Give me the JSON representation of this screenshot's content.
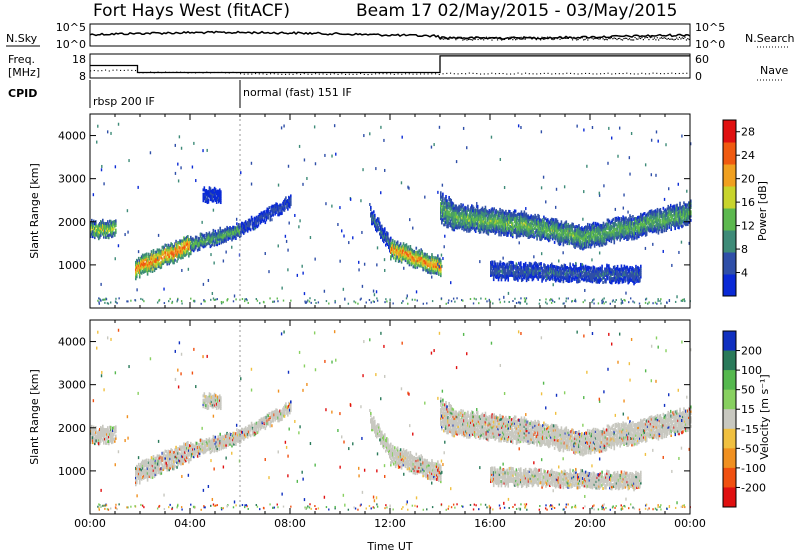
{
  "header": {
    "radar": "Fort Hays West (fitACF)",
    "beam_range": "Beam 17 02/May/2015 - 03/May/2015"
  },
  "status_panels": {
    "nsky_label": "N.Sky",
    "nsky_ticks": [
      "10^5",
      "10^0"
    ],
    "nsearch_label": "N.Search",
    "nsearch_ticks": [
      "10^5",
      "10^0"
    ],
    "freq_label_line1": "Freq.",
    "freq_label_line2": "[MHz]",
    "freq_ticks": [
      18,
      8
    ],
    "nave_label": "Nave",
    "nave_ticks": [
      60,
      0
    ],
    "cpid_label": "CPID",
    "cpid_modes": [
      {
        "name": "rbsp 200 IF",
        "start_h": 0,
        "end_h": 6
      },
      {
        "name": "normal (fast) 151 IF",
        "start_h": 6,
        "end_h": 24
      }
    ],
    "freq_segments": [
      {
        "start_h": 0,
        "end_h": 1.9,
        "mhz": 13.2
      },
      {
        "start_h": 1.9,
        "end_h": 14.0,
        "mhz": 10.3
      },
      {
        "start_h": 14.0,
        "end_h": 24,
        "mhz": 17.2
      }
    ]
  },
  "chart_data": [
    {
      "type": "heatmap",
      "name": "power",
      "ylabel": "Slant Range [km]",
      "colorbar_label": "Power [dB]",
      "colorbar_ticks": [
        4,
        8,
        12,
        16,
        20,
        24,
        28
      ],
      "colorbar_range": [
        0,
        30
      ],
      "colors": [
        "#0a2ad6",
        "#2f4fa8",
        "#3e8b78",
        "#5cb84e",
        "#c8d42c",
        "#f0a020",
        "#f05a10",
        "#e01010"
      ],
      "ylim": [
        0,
        4500
      ],
      "yticks": [
        1000,
        2000,
        3000,
        4000
      ],
      "xlim": [
        0,
        24
      ],
      "echo_bands": [
        {
          "start_h": 0.0,
          "end_h": 1.0,
          "range_start": 1850,
          "range_end": 1880,
          "width": 320,
          "peak_db": 17
        },
        {
          "start_h": 1.8,
          "end_h": 4.0,
          "range_start": 950,
          "range_end": 1500,
          "width": 380,
          "peak_db": 25
        },
        {
          "start_h": 4.0,
          "end_h": 6.0,
          "range_start": 1500,
          "range_end": 1850,
          "width": 250,
          "peak_db": 14
        },
        {
          "start_h": 6.0,
          "end_h": 8.0,
          "range_start": 1850,
          "range_end": 2500,
          "width": 200,
          "peak_db": 6
        },
        {
          "start_h": 11.2,
          "end_h": 12.0,
          "range_start": 2200,
          "range_end": 1500,
          "width": 250,
          "peak_db": 8
        },
        {
          "start_h": 12.0,
          "end_h": 14.0,
          "range_start": 1400,
          "range_end": 1000,
          "width": 350,
          "peak_db": 24
        },
        {
          "start_h": 14.0,
          "end_h": 14.5,
          "range_start": 2350,
          "range_end": 2200,
          "width": 600,
          "peak_db": 13
        },
        {
          "start_h": 14.5,
          "end_h": 17.5,
          "range_start": 2150,
          "range_end": 1950,
          "width": 500,
          "peak_db": 14
        },
        {
          "start_h": 17.5,
          "end_h": 19.8,
          "range_start": 1950,
          "range_end": 1650,
          "width": 450,
          "peak_db": 14
        },
        {
          "start_h": 19.8,
          "end_h": 22.0,
          "range_start": 1700,
          "range_end": 1950,
          "width": 450,
          "peak_db": 13
        },
        {
          "start_h": 22.0,
          "end_h": 24.0,
          "range_start": 1950,
          "range_end": 2250,
          "width": 450,
          "peak_db": 13
        },
        {
          "start_h": 16.0,
          "end_h": 22.0,
          "range_start": 900,
          "range_end": 800,
          "width": 300,
          "peak_db": 7
        },
        {
          "start_h": 4.5,
          "end_h": 5.2,
          "range_start": 2650,
          "range_end": 2650,
          "width": 250,
          "peak_db": 4
        }
      ]
    },
    {
      "type": "heatmap",
      "name": "velocity",
      "ylabel": "Slant Range [km]",
      "colorbar_label": "Velocity [m s⁻¹]",
      "colorbar_ticks": [
        "200",
        "100",
        "50",
        "15",
        "-15",
        "-50",
        "-100",
        "-200"
      ],
      "colorbar_range": [
        -250,
        250
      ],
      "colors": [
        "#1030c0",
        "#2a7a5a",
        "#55b84e",
        "#88d060",
        "#c8c8c0",
        "#f0c040",
        "#f09020",
        "#f05010",
        "#e01010"
      ],
      "ylim": [
        0,
        4500
      ],
      "yticks": [
        1000,
        2000,
        3000,
        4000
      ],
      "xlim": [
        0,
        24
      ],
      "xticks": [
        "00:00",
        "04:00",
        "08:00",
        "12:00",
        "16:00",
        "20:00",
        "00:00"
      ],
      "xlabel": "Time UT"
    }
  ]
}
